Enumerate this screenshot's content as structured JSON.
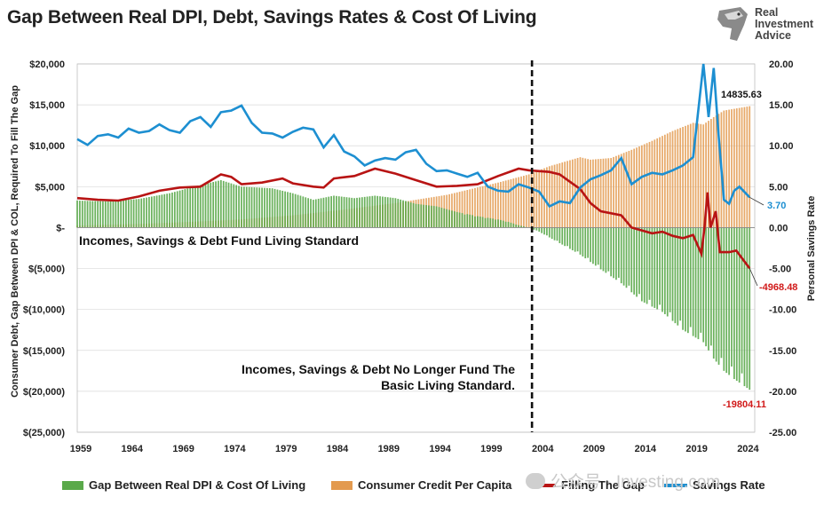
{
  "title": "Gap Between Real DPI, Debt, Savings Rates & Cost Of Living",
  "logo": {
    "lines": [
      "Real",
      "Investment",
      "Advice"
    ]
  },
  "watermark": "公众号 · Investing.com",
  "chart_data": {
    "type": "bar+line",
    "left_axis": {
      "label": "Consumer Debt, Gap Between DPI & COL, Required To Fill The Gap",
      "range": [
        -25000,
        20000
      ],
      "ticks": [
        "$20,000",
        "$15,000",
        "$10,000",
        "$5,000",
        "$-",
        "$(5,000)",
        "$(10,000)",
        "$(15,000)",
        "$(20,000)",
        "$(25,000)"
      ]
    },
    "right_axis": {
      "label": "Personal Savings Rate",
      "range": [
        -25,
        20
      ],
      "ticks": [
        "20.00",
        "15.00",
        "10.00",
        "5.00",
        "0.00",
        "-5.00",
        "-10.00",
        "-15.00",
        "-20.00",
        "-25.00"
      ]
    },
    "x_axis": {
      "range": [
        1959,
        2025
      ],
      "ticks": [
        "1959",
        "1964",
        "1969",
        "1974",
        "1979",
        "1984",
        "1989",
        "1994",
        "1999",
        "2004",
        "2009",
        "2014",
        "2019",
        "2024"
      ]
    },
    "vline_year": 2003.3,
    "annotations": [
      "Incomes, Savings & Debt Fund Living Standard",
      "Incomes, Savings & Debt No Longer Fund The",
      "Basic Living Standard."
    ],
    "data_labels": {
      "consumer_credit_last": "14835.63",
      "savings_rate_last": "3.70",
      "filling_gap_last": "-4968.48",
      "gap_last": "-19804.11"
    },
    "series": [
      {
        "name": "Gap Between Real DPI & Cost Of Living",
        "type": "bar",
        "axis": "left",
        "color": "#5aa94a",
        "points": [
          [
            1959,
            3300
          ],
          [
            1962,
            3200
          ],
          [
            1965,
            3500
          ],
          [
            1968,
            4200
          ],
          [
            1971,
            5200
          ],
          [
            1973,
            5800
          ],
          [
            1975,
            5000
          ],
          [
            1978,
            4800
          ],
          [
            1980,
            4200
          ],
          [
            1982,
            3400
          ],
          [
            1984,
            3900
          ],
          [
            1986,
            3600
          ],
          [
            1988,
            3900
          ],
          [
            1990,
            3600
          ],
          [
            1992,
            2900
          ],
          [
            1994,
            2600
          ],
          [
            1996,
            1900
          ],
          [
            1998,
            1400
          ],
          [
            2000,
            1000
          ],
          [
            2001,
            700
          ],
          [
            2002,
            300
          ],
          [
            2003,
            0
          ],
          [
            2004,
            -500
          ],
          [
            2006,
            -1900
          ],
          [
            2008,
            -3300
          ],
          [
            2010,
            -5100
          ],
          [
            2012,
            -6800
          ],
          [
            2014,
            -9000
          ],
          [
            2016,
            -10300
          ],
          [
            2018,
            -12500
          ],
          [
            2020,
            -14000
          ],
          [
            2021,
            -16000
          ],
          [
            2022,
            -17500
          ],
          [
            2023,
            -18500
          ],
          [
            2024.5,
            -19804.11
          ]
        ]
      },
      {
        "name": "Consumer Credit Per Capita",
        "type": "bar",
        "axis": "left",
        "color": "#e39a4f",
        "points": [
          [
            1959,
            250
          ],
          [
            1965,
            450
          ],
          [
            1970,
            700
          ],
          [
            1975,
            1000
          ],
          [
            1980,
            1500
          ],
          [
            1985,
            2200
          ],
          [
            1990,
            3000
          ],
          [
            1995,
            4000
          ],
          [
            2000,
            5500
          ],
          [
            2003,
            6500
          ],
          [
            2005,
            7500
          ],
          [
            2008,
            8600
          ],
          [
            2009,
            8300
          ],
          [
            2011,
            8500
          ],
          [
            2013,
            9500
          ],
          [
            2015,
            10600
          ],
          [
            2017,
            11800
          ],
          [
            2019,
            12800
          ],
          [
            2020,
            12600
          ],
          [
            2021,
            13500
          ],
          [
            2022,
            14300
          ],
          [
            2024.5,
            14835.63
          ]
        ]
      },
      {
        "name": "Filling The Gap",
        "type": "line",
        "axis": "left",
        "color": "#b81414",
        "points": [
          [
            1959,
            3600
          ],
          [
            1961,
            3400
          ],
          [
            1963,
            3300
          ],
          [
            1965,
            3800
          ],
          [
            1967,
            4500
          ],
          [
            1969,
            4900
          ],
          [
            1971,
            5000
          ],
          [
            1973,
            6500
          ],
          [
            1974,
            6200
          ],
          [
            1975,
            5300
          ],
          [
            1977,
            5500
          ],
          [
            1979,
            6000
          ],
          [
            1980,
            5400
          ],
          [
            1982,
            5000
          ],
          [
            1983,
            4900
          ],
          [
            1984,
            6000
          ],
          [
            1986,
            6300
          ],
          [
            1988,
            7200
          ],
          [
            1990,
            6600
          ],
          [
            1992,
            5800
          ],
          [
            1994,
            5000
          ],
          [
            1996,
            5100
          ],
          [
            1998,
            5300
          ],
          [
            2000,
            6300
          ],
          [
            2002,
            7200
          ],
          [
            2003,
            7000
          ],
          [
            2005,
            6800
          ],
          [
            2006,
            6500
          ],
          [
            2008,
            4700
          ],
          [
            2009,
            3000
          ],
          [
            2010,
            2000
          ],
          [
            2012,
            1500
          ],
          [
            2013,
            0
          ],
          [
            2015,
            -700
          ],
          [
            2016,
            -500
          ],
          [
            2017,
            -1000
          ],
          [
            2018,
            -1300
          ],
          [
            2019,
            -900
          ],
          [
            2019.8,
            -3200
          ],
          [
            2020.1,
            0
          ],
          [
            2020.4,
            4300
          ],
          [
            2020.7,
            0
          ],
          [
            2021.2,
            2000
          ],
          [
            2021.6,
            -3000
          ],
          [
            2022.5,
            -3000
          ],
          [
            2023.2,
            -2800
          ],
          [
            2024.5,
            -4968.48
          ]
        ]
      },
      {
        "name": "Savings Rate",
        "type": "line",
        "axis": "right",
        "color": "#1d8fd1",
        "points": [
          [
            1959,
            10.8
          ],
          [
            1960,
            10.1
          ],
          [
            1961,
            11.2
          ],
          [
            1962,
            11.4
          ],
          [
            1963,
            11.0
          ],
          [
            1964,
            12.1
          ],
          [
            1965,
            11.6
          ],
          [
            1966,
            11.8
          ],
          [
            1967,
            12.6
          ],
          [
            1968,
            11.9
          ],
          [
            1969,
            11.6
          ],
          [
            1970,
            13.0
          ],
          [
            1971,
            13.5
          ],
          [
            1972,
            12.3
          ],
          [
            1973,
            14.1
          ],
          [
            1974,
            14.3
          ],
          [
            1975,
            14.9
          ],
          [
            1976,
            12.8
          ],
          [
            1977,
            11.6
          ],
          [
            1978,
            11.5
          ],
          [
            1979,
            11.0
          ],
          [
            1980,
            11.7
          ],
          [
            1981,
            12.2
          ],
          [
            1982,
            12.0
          ],
          [
            1983,
            9.8
          ],
          [
            1984,
            11.3
          ],
          [
            1985,
            9.3
          ],
          [
            1986,
            8.7
          ],
          [
            1987,
            7.6
          ],
          [
            1988,
            8.2
          ],
          [
            1989,
            8.5
          ],
          [
            1990,
            8.3
          ],
          [
            1991,
            9.2
          ],
          [
            1992,
            9.5
          ],
          [
            1993,
            7.8
          ],
          [
            1994,
            6.9
          ],
          [
            1995,
            7.0
          ],
          [
            1996,
            6.6
          ],
          [
            1997,
            6.2
          ],
          [
            1998,
            6.7
          ],
          [
            1999,
            5.0
          ],
          [
            2000,
            4.5
          ],
          [
            2001,
            4.4
          ],
          [
            2002,
            5.3
          ],
          [
            2003,
            4.9
          ],
          [
            2004,
            4.4
          ],
          [
            2005,
            2.6
          ],
          [
            2006,
            3.2
          ],
          [
            2007,
            3.0
          ],
          [
            2008,
            4.9
          ],
          [
            2009,
            5.9
          ],
          [
            2010,
            6.4
          ],
          [
            2011,
            7.0
          ],
          [
            2012,
            8.5
          ],
          [
            2013,
            5.3
          ],
          [
            2014,
            6.2
          ],
          [
            2015,
            6.7
          ],
          [
            2016,
            6.5
          ],
          [
            2017,
            7.0
          ],
          [
            2018,
            7.6
          ],
          [
            2019,
            8.6
          ],
          [
            2020,
            20.0
          ],
          [
            2020.5,
            13.5
          ],
          [
            2021,
            19.5
          ],
          [
            2021.5,
            11.0
          ],
          [
            2022,
            3.4
          ],
          [
            2022.5,
            2.9
          ],
          [
            2023,
            4.5
          ],
          [
            2023.5,
            5.0
          ],
          [
            2024.5,
            3.7
          ]
        ]
      }
    ]
  },
  "legend": [
    {
      "label": "Gap Between Real DPI & Cost Of Living",
      "kind": "bar",
      "color": "#5aa94a"
    },
    {
      "label": "Consumer Credit Per Capita",
      "kind": "bar",
      "color": "#e39a4f"
    },
    {
      "label": "Filling The Gap",
      "kind": "line",
      "color": "#b81414"
    },
    {
      "label": "Savings Rate",
      "kind": "line",
      "color": "#1d8fd1"
    }
  ]
}
